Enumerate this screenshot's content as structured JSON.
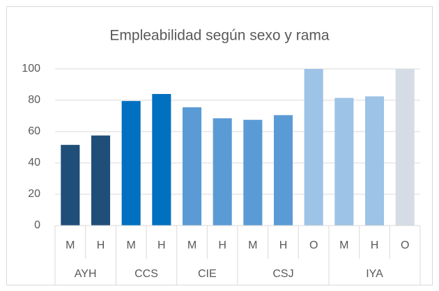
{
  "chart_data": {
    "type": "bar",
    "title": "Empleabilidad según sexo y rama",
    "categories": [
      "M",
      "H",
      "M",
      "H",
      "M",
      "H",
      "M",
      "H",
      "O",
      "M",
      "H",
      "O"
    ],
    "groups": [
      {
        "label": "AYH",
        "span": 2
      },
      {
        "label": "CCS",
        "span": 2
      },
      {
        "label": "CIE",
        "span": 2
      },
      {
        "label": "CSJ",
        "span": 3
      },
      {
        "label": "IYA",
        "span": 3
      }
    ],
    "values": [
      51.5,
      57.5,
      79.5,
      84,
      75.5,
      68.5,
      67.5,
      70.5,
      100,
      81.5,
      82.5,
      100
    ],
    "colors": [
      "#1f4e79",
      "#1f4e79",
      "#0070c0",
      "#0070c0",
      "#5b9bd5",
      "#5b9bd5",
      "#5b9bd5",
      "#5b9bd5",
      "#9dc3e6",
      "#9dc3e6",
      "#9dc3e6",
      "#d6dce5"
    ],
    "ylim": [
      0,
      100
    ],
    "yticks": [
      0,
      20,
      40,
      60,
      80,
      100
    ],
    "grid": true
  }
}
